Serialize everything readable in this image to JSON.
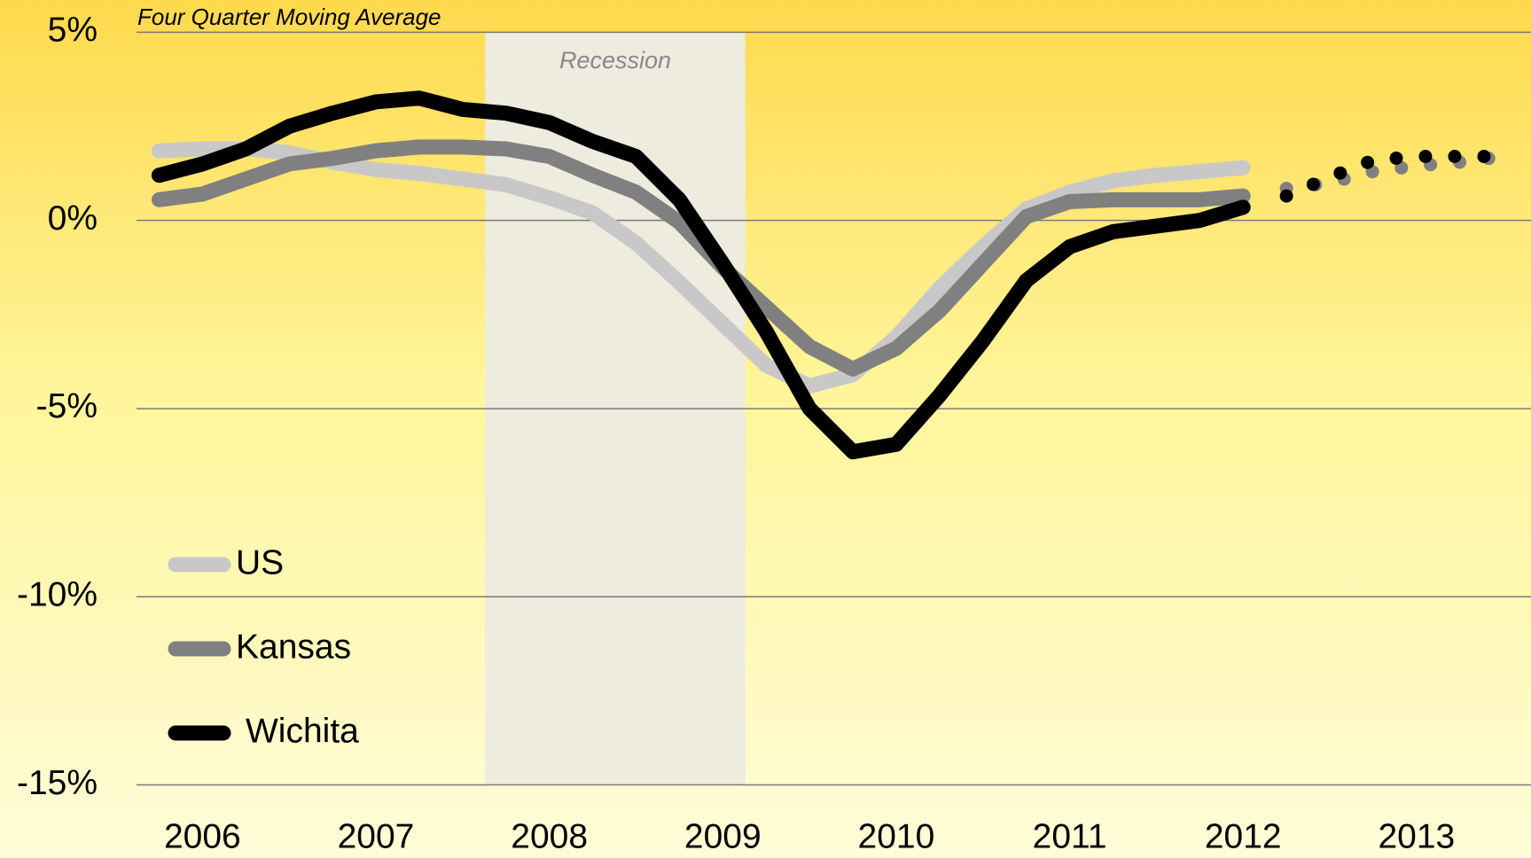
{
  "chart_data": {
    "type": "line",
    "subtitle": "Four Quarter Moving Average",
    "shade": {
      "label": "Recession",
      "x": [
        2007.63,
        2009.13
      ],
      "color": "#eeebdf"
    },
    "x": [
      2005.75,
      2006,
      2006.25,
      2006.5,
      2006.75,
      2007,
      2007.25,
      2007.5,
      2007.75,
      2008,
      2008.25,
      2008.5,
      2008.75,
      2009,
      2009.25,
      2009.5,
      2009.75,
      2010,
      2010.25,
      2010.5,
      2010.75,
      2011,
      2011.25,
      2011.5,
      2011.75,
      2012,
      2012.25,
      2012.5,
      2012.75,
      2013,
      2013.25,
      2013.5
    ],
    "series": [
      {
        "name": "US",
        "color": "#c8c8c8",
        "values": [
          1.85,
          1.9,
          1.9,
          1.8,
          1.55,
          1.35,
          1.25,
          1.1,
          0.95,
          0.6,
          0.2,
          -0.6,
          -1.65,
          -2.75,
          -3.85,
          -4.4,
          -4.1,
          -3.1,
          -1.8,
          -0.7,
          0.3,
          0.75,
          1.05,
          1.2,
          1.3,
          1.4,
          null,
          null,
          null,
          null,
          null,
          null
        ],
        "forecast_values": [
          null,
          null,
          null,
          null,
          null,
          null,
          null,
          null,
          null,
          null,
          null,
          null,
          null,
          null,
          null,
          null,
          null,
          null,
          null,
          null,
          null,
          null,
          null,
          null,
          null,
          null,
          0.85,
          1.0,
          1.3,
          1.45,
          1.55,
          1.7
        ]
      },
      {
        "name": "Kansas",
        "color": "#808080",
        "values": [
          0.55,
          0.7,
          1.1,
          1.5,
          1.65,
          1.85,
          1.95,
          1.95,
          1.9,
          1.7,
          1.2,
          0.75,
          -0.05,
          -1.25,
          -2.3,
          -3.35,
          -3.95,
          -3.4,
          -2.4,
          -1.15,
          0.1,
          0.5,
          0.55,
          0.55,
          0.55,
          0.65,
          null,
          null,
          null,
          null,
          null,
          null
        ],
        "forecast_values": [
          null,
          null,
          null,
          null,
          null,
          null,
          null,
          null,
          null,
          null,
          null,
          null,
          null,
          null,
          null,
          null,
          null,
          null,
          null,
          null,
          null,
          null,
          null,
          null,
          null,
          null,
          0.85,
          1.0,
          1.3,
          1.45,
          1.55,
          1.7
        ]
      },
      {
        "name": "Wichita",
        "color": "#000000",
        "values": [
          1.2,
          1.5,
          1.9,
          2.5,
          2.85,
          3.15,
          3.25,
          2.95,
          2.85,
          2.6,
          2.1,
          1.7,
          0.55,
          -1.15,
          -2.95,
          -5.0,
          -6.15,
          -5.95,
          -4.65,
          -3.2,
          -1.6,
          -0.7,
          -0.3,
          -0.15,
          0,
          0.35,
          null,
          null,
          null,
          null,
          null,
          null
        ],
        "forecast_values": [
          null,
          null,
          null,
          null,
          null,
          null,
          null,
          null,
          null,
          null,
          null,
          null,
          null,
          null,
          null,
          null,
          null,
          null,
          null,
          null,
          null,
          null,
          null,
          null,
          null,
          null,
          0.65,
          1.15,
          1.6,
          1.7,
          1.7,
          1.7
        ]
      }
    ],
    "xlim": [
      2005.62,
      2013.66
    ],
    "xticks": [
      2006,
      2007,
      2008,
      2009,
      2010,
      2011,
      2012,
      2013
    ],
    "ylim": [
      -15,
      5
    ],
    "yticks": [
      {
        "value": 5,
        "label": "5%"
      },
      {
        "value": 0,
        "label": "0%"
      },
      {
        "value": -5,
        "label": "-5%"
      },
      {
        "value": -10,
        "label": "-10%"
      },
      {
        "value": -15,
        "label": "-15%"
      }
    ],
    "grid": true,
    "legend": "bottom-left"
  }
}
